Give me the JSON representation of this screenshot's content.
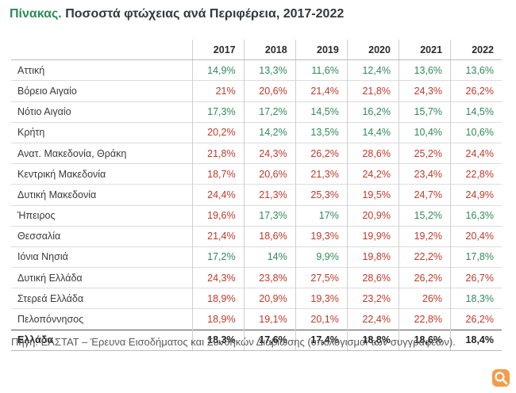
{
  "title": {
    "lead": "Πίνακας.",
    "text": "Ποσοστά φτώχειας ανά Περιφέρεια, 2017-2022"
  },
  "colors": {
    "above_national": "#c0392b",
    "below_national": "#2e8b57",
    "accent": "#2e8b57"
  },
  "chart_data": {
    "type": "table",
    "title": "Πίνακας. Ποσοστά φτώχειας ανά Περιφέρεια, 2017-2022",
    "columns": [
      "2017",
      "2018",
      "2019",
      "2020",
      "2021",
      "2022"
    ],
    "rows": [
      {
        "region": "Αττική",
        "values": [
          "14,9%",
          "13,3%",
          "11,6%",
          "12,4%",
          "13,6%",
          "13,6%"
        ],
        "tone": [
          "green",
          "green",
          "green",
          "green",
          "green",
          "green"
        ]
      },
      {
        "region": "Βόρειο Αιγαίο",
        "values": [
          "21%",
          "20,6%",
          "21,4%",
          "21,8%",
          "24,3%",
          "26,2%"
        ],
        "tone": [
          "red",
          "red",
          "red",
          "red",
          "red",
          "red"
        ]
      },
      {
        "region": "Νότιο Αιγαίο",
        "values": [
          "17,3%",
          "17,2%",
          "14,5%",
          "16,2%",
          "15,7%",
          "14,5%"
        ],
        "tone": [
          "green",
          "green",
          "green",
          "green",
          "green",
          "green"
        ]
      },
      {
        "region": "Κρήτη",
        "values": [
          "20,2%",
          "14,2%",
          "13,5%",
          "14,4%",
          "10,4%",
          "10,6%"
        ],
        "tone": [
          "red",
          "green",
          "green",
          "green",
          "green",
          "green"
        ]
      },
      {
        "region": "Ανατ. Μακεδονία, Θράκη",
        "values": [
          "21,8%",
          "24,3%",
          "26,2%",
          "28,6%",
          "25,2%",
          "24,4%"
        ],
        "tone": [
          "red",
          "red",
          "red",
          "red",
          "red",
          "red"
        ]
      },
      {
        "region": "Κεντρική Μακεδονία",
        "values": [
          "18,7%",
          "20,6%",
          "21,3%",
          "24,2%",
          "23,4%",
          "22,8%"
        ],
        "tone": [
          "red",
          "red",
          "red",
          "red",
          "red",
          "red"
        ]
      },
      {
        "region": "Δυτική Μακεδονία",
        "values": [
          "24,4%",
          "21,3%",
          "25,3%",
          "19,5%",
          "24,7%",
          "24,9%"
        ],
        "tone": [
          "red",
          "red",
          "red",
          "red",
          "red",
          "red"
        ]
      },
      {
        "region": "Ήπειρος",
        "values": [
          "19,6%",
          "17,3%",
          "17%",
          "20,9%",
          "15,2%",
          "16,3%"
        ],
        "tone": [
          "red",
          "green",
          "green",
          "red",
          "green",
          "green"
        ]
      },
      {
        "region": "Θεσσαλία",
        "values": [
          "21,4%",
          "18,6%",
          "19,3%",
          "19,9%",
          "19,2%",
          "20,4%"
        ],
        "tone": [
          "red",
          "red",
          "red",
          "red",
          "red",
          "red"
        ]
      },
      {
        "region": "Ιόνια Νησιά",
        "values": [
          "17,2%",
          "14%",
          "9,9%",
          "19,8%",
          "22,2%",
          "17,8%"
        ],
        "tone": [
          "green",
          "green",
          "green",
          "red",
          "red",
          "green"
        ]
      },
      {
        "region": "Δυτική Ελλάδα",
        "values": [
          "24,3%",
          "23,8%",
          "27,5%",
          "28,6%",
          "26,2%",
          "26,7%"
        ],
        "tone": [
          "red",
          "red",
          "red",
          "red",
          "red",
          "red"
        ]
      },
      {
        "region": "Στερεά Ελλάδα",
        "values": [
          "18,9%",
          "20,9%",
          "19,3%",
          "23,2%",
          "26%",
          "18,3%"
        ],
        "tone": [
          "red",
          "red",
          "red",
          "red",
          "red",
          "green"
        ]
      },
      {
        "region": "Πελοπόννησος",
        "values": [
          "18,9%",
          "19,1%",
          "20,1%",
          "22,4%",
          "22,8%",
          "26,2%"
        ],
        "tone": [
          "red",
          "red",
          "red",
          "red",
          "red",
          "red"
        ]
      }
    ],
    "total": {
      "region": "Ελλάδα",
      "values": [
        "18,3%",
        "17,6%",
        "17,4%",
        "18,8%",
        "18,6%",
        "18,4%"
      ]
    }
  },
  "source": "Πηγή: ΕΛΣΤΑΤ – Έρευνα Εισοδήματος και Συνθηκών Διαβίωσης (υπολογισμοί των συγγραφέων).",
  "logo_icon": "publisher-logo-icon"
}
